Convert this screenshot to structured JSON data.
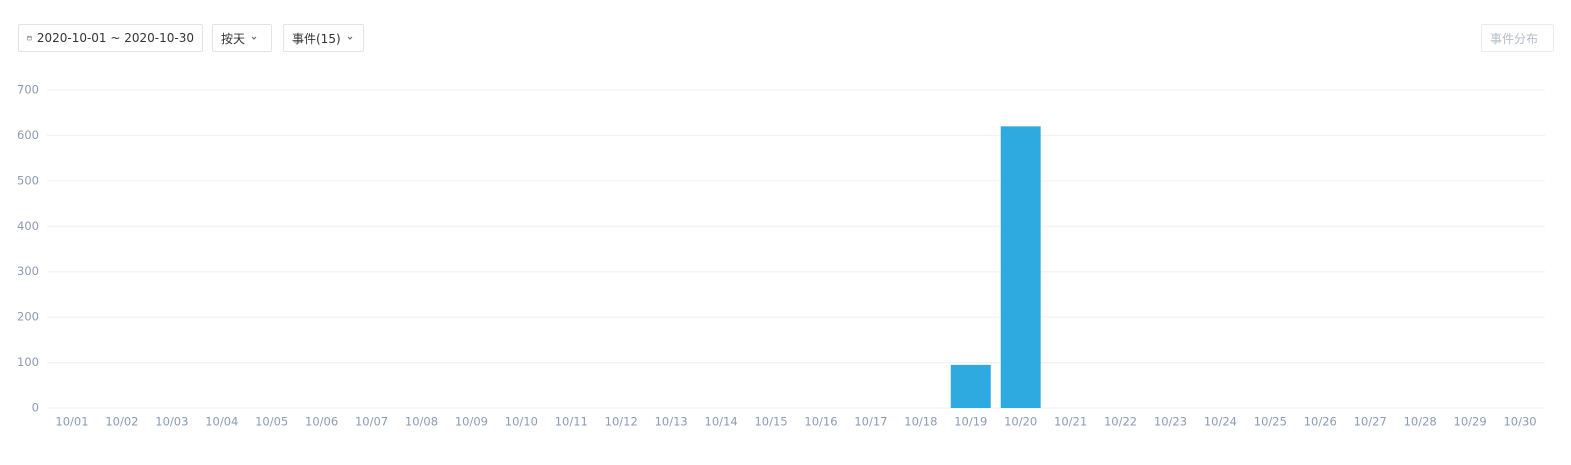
{
  "toolbar": {
    "date_range": "2020-10-01 ~ 2020-10-30",
    "granularity": "按天",
    "events": "事件(15)",
    "distribution": "事件分布"
  },
  "chart_data": {
    "type": "bar",
    "categories": [
      "10/01",
      "10/02",
      "10/03",
      "10/04",
      "10/05",
      "10/06",
      "10/07",
      "10/08",
      "10/09",
      "10/10",
      "10/11",
      "10/12",
      "10/13",
      "10/14",
      "10/15",
      "10/16",
      "10/17",
      "10/18",
      "10/19",
      "10/20",
      "10/21",
      "10/22",
      "10/23",
      "10/24",
      "10/25",
      "10/26",
      "10/27",
      "10/28",
      "10/29",
      "10/30"
    ],
    "values": [
      0,
      0,
      0,
      0,
      0,
      0,
      0,
      0,
      0,
      0,
      0,
      0,
      0,
      0,
      0,
      0,
      0,
      0,
      95,
      620,
      0,
      0,
      0,
      0,
      0,
      0,
      0,
      0,
      0,
      0
    ],
    "color": "#2eaae0",
    "ylim": [
      0,
      700
    ],
    "yticks": [
      0,
      100,
      200,
      300,
      400,
      500,
      600,
      700
    ],
    "grid": true
  }
}
